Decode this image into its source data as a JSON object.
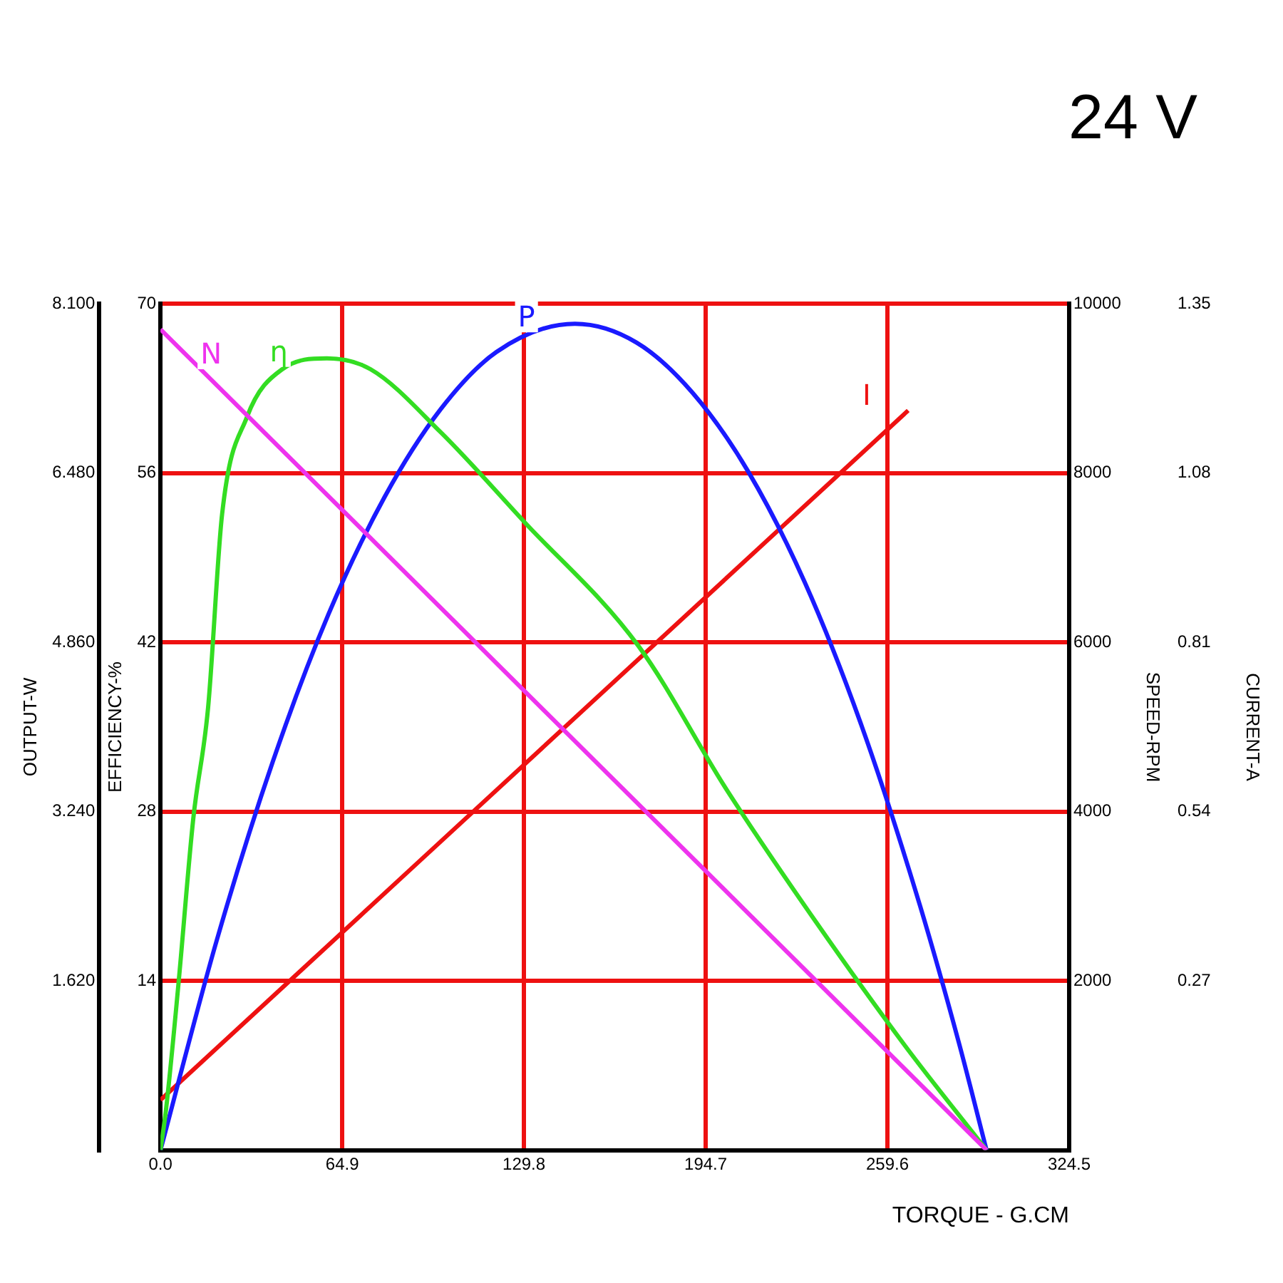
{
  "chart_data": [
    {
      "type": "line",
      "annotations": [
        "24 V"
      ],
      "xlabel": "TORQUE - G.CM",
      "ylabel": "EFFICIENCY-%",
      "y2label": "OUTPUT-W",
      "y3label": "CURRENT-A",
      "xlim": [
        0,
        324.5
      ],
      "xticks": [
        {
          "value": 0,
          "label": "0.0"
        },
        64.9,
        129.8,
        194.7,
        259.6,
        324.5
      ],
      "ylim": [
        0,
        70
      ],
      "yticks": [
        14,
        28,
        42,
        56,
        70
      ],
      "y2lim": [
        0,
        8.1
      ],
      "y2ticks": [
        {
          "value": 1.62,
          "label": "1.620"
        },
        {
          "value": 3.24,
          "label": "3.240"
        },
        {
          "value": 4.86,
          "label": "4.860"
        },
        {
          "value": 6.48,
          "label": "6.480"
        },
        {
          "value": 8.1,
          "label": "8.100"
        }
      ],
      "y3lim": [
        0,
        1.35
      ],
      "y3ticks": [
        0.27,
        0.54,
        0.81,
        1.08,
        1.35
      ],
      "grid": true,
      "legend": false,
      "marker": "none",
      "line_style": "solid",
      "series": [
        {
          "name": "η",
          "color": "#33dd22",
          "x": [
            0,
            2,
            6.4,
            11.7,
            17,
            22,
            30.8,
            43.5,
            59.4,
            75,
            100,
            129.8,
            170.7,
            202.5,
            234,
            266,
            295
          ],
          "values": [
            0,
            3.4,
            13.7,
            27.4,
            36.6,
            52.6,
            60.6,
            64.6,
            65.5,
            64.6,
            59.4,
            52,
            41.7,
            29.7,
            18.9,
            8.6,
            0
          ]
        },
        {
          "name": "P",
          "color": "#1a1aff",
          "axis": "y2",
          "x": [
            0,
            20,
            40,
            60,
            80,
            100,
            120,
            148,
            170,
            190,
            210,
            230,
            250,
            270,
            285,
            295
          ],
          "values": [
            0,
            2.0,
            3.71,
            5.13,
            6.25,
            7.09,
            7.64,
            7.91,
            7.73,
            7.25,
            6.49,
            5.44,
            4.09,
            2.45,
            1.04,
            0
          ]
        },
        {
          "name": "I",
          "color": "#ee1111",
          "axis": "y3",
          "x": [
            0,
            267
          ],
          "values": [
            0.08,
            1.18
          ]
        }
      ]
    },
    {
      "type": "line",
      "ylabel": "SPEED-RPM",
      "xlim": [
        0,
        324.5
      ],
      "ylim": [
        0,
        10000
      ],
      "yticks": [
        2000,
        4000,
        6000,
        8000,
        10000
      ],
      "tick_labels": "y",
      "marker": "none",
      "line_style": "solid",
      "series": [
        {
          "name": "N",
          "color": "#ee33ee",
          "x": [
            0,
            295
          ],
          "values": [
            9700,
            0
          ]
        }
      ]
    }
  ]
}
